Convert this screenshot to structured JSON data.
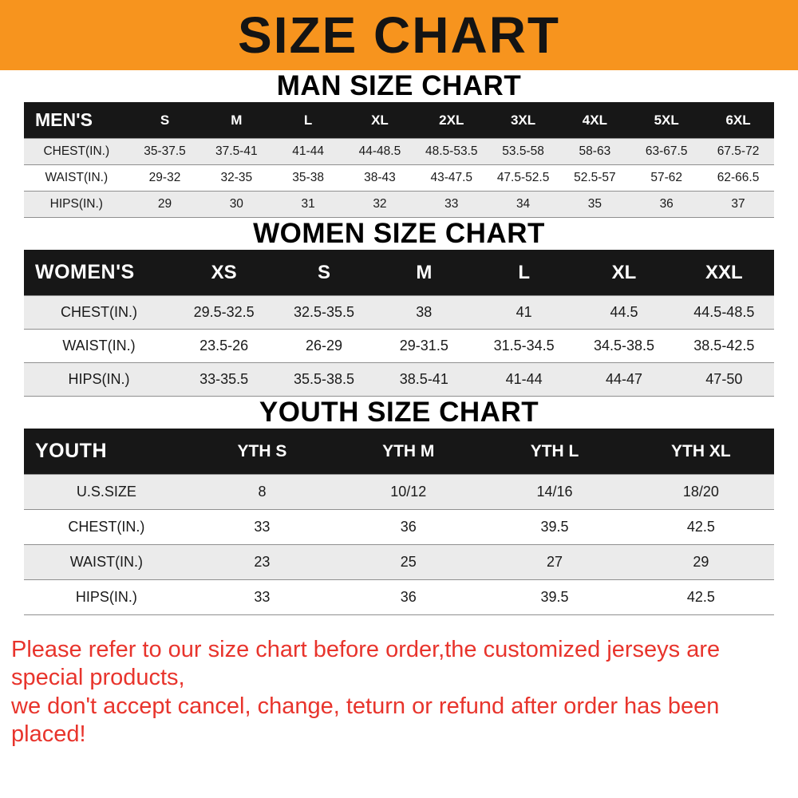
{
  "banner": {
    "title": "SIZE CHART"
  },
  "sections": [
    {
      "heading": "MAN SIZE CHART",
      "table": {
        "header": [
          "MEN'S",
          "S",
          "M",
          "L",
          "XL",
          "2XL",
          "3XL",
          "4XL",
          "5XL",
          "6XL"
        ],
        "rows": [
          [
            "CHEST(IN.)",
            "35-37.5",
            "37.5-41",
            "41-44",
            "44-48.5",
            "48.5-53.5",
            "53.5-58",
            "58-63",
            "63-67.5",
            "67.5-72"
          ],
          [
            "WAIST(IN.)",
            "29-32",
            "32-35",
            "35-38",
            "38-43",
            "43-47.5",
            "47.5-52.5",
            "52.5-57",
            "57-62",
            "62-66.5"
          ],
          [
            "HIPS(IN.)",
            "29",
            "30",
            "31",
            "32",
            "33",
            "34",
            "35",
            "36",
            "37"
          ]
        ]
      }
    },
    {
      "heading": "WOMEN SIZE CHART",
      "table": {
        "header": [
          "WOMEN'S",
          "XS",
          "S",
          "M",
          "L",
          "XL",
          "XXL"
        ],
        "rows": [
          [
            "CHEST(IN.)",
            "29.5-32.5",
            "32.5-35.5",
            "38",
            "41",
            "44.5",
            "44.5-48.5"
          ],
          [
            "WAIST(IN.)",
            "23.5-26",
            "26-29",
            "29-31.5",
            "31.5-34.5",
            "34.5-38.5",
            "38.5-42.5"
          ],
          [
            "HIPS(IN.)",
            "33-35.5",
            "35.5-38.5",
            "38.5-41",
            "41-44",
            "44-47",
            "47-50"
          ]
        ]
      }
    },
    {
      "heading": "YOUTH SIZE CHART",
      "table": {
        "header": [
          "YOUTH",
          "YTH S",
          "YTH M",
          "YTH L",
          "YTH XL"
        ],
        "rows": [
          [
            "U.S.SIZE",
            "8",
            "10/12",
            "14/16",
            "18/20"
          ],
          [
            "CHEST(IN.)",
            "33",
            "36",
            "39.5",
            "42.5"
          ],
          [
            "WAIST(IN.)",
            "23",
            "25",
            "27",
            "29"
          ],
          [
            "HIPS(IN.)",
            "33",
            "36",
            "39.5",
            "42.5"
          ]
        ]
      }
    }
  ],
  "footer": {
    "line1": "Please refer to our size chart before order,the customized jerseys are special products,",
    "line2": "we don't accept cancel, change, teturn or refund after order has been placed!"
  },
  "colors": {
    "banner_orange": "#F7941E",
    "table_header_black": "#171717",
    "row_shade_gray": "#EBEBEB",
    "disclaimer_red": "#E8342C"
  }
}
